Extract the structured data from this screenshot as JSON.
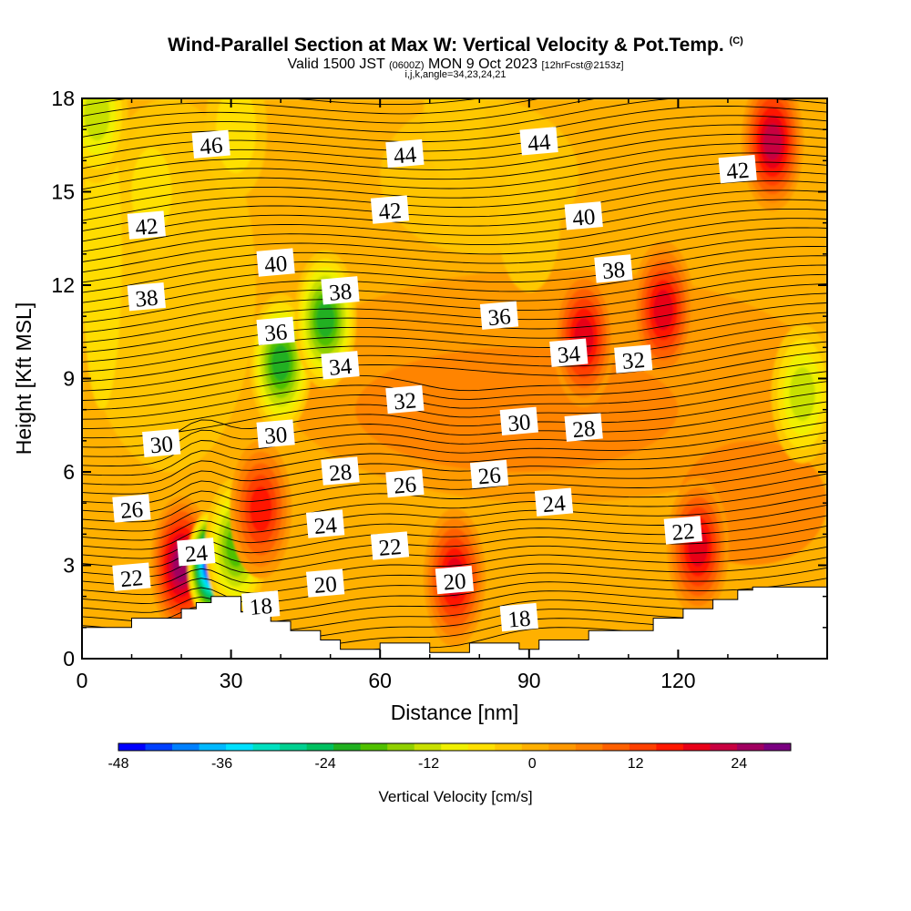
{
  "title": {
    "main": "Wind-Parallel Section at Max W: Vertical Velocity & Pot.Temp.",
    "copyright": "(C)",
    "valid_prefix": "Valid 1500 JST",
    "valid_zulu": "(0600Z)",
    "valid_date": "MON 9 Oct 2023",
    "forecast": "[12hrFcst@2153z]",
    "indices": "i,j,k,angle=34,23,24,21"
  },
  "chart_data": {
    "type": "heatmap",
    "xlabel": "Distance [nm]",
    "ylabel": "Height [Kft MSL]",
    "xlim": [
      0,
      150
    ],
    "ylim": [
      0,
      18
    ],
    "xticks": [
      0,
      30,
      60,
      90,
      120
    ],
    "yticks": [
      0,
      3,
      6,
      9,
      12,
      15,
      18
    ],
    "colorbar": {
      "title": "Vertical Velocity [cm/s]",
      "ticks": [
        -48,
        -36,
        -24,
        -12,
        0,
        12,
        24
      ],
      "range": [
        -48,
        30
      ],
      "levels": [
        -48,
        -42,
        -39,
        -36,
        -33,
        -30,
        -27,
        -24,
        -21,
        -18,
        -15,
        -12,
        -9,
        -6,
        -3,
        0,
        3,
        6,
        9,
        12,
        15,
        18,
        21,
        24,
        27,
        30
      ],
      "colors": [
        "#0000ff",
        "#0040ff",
        "#0080ff",
        "#00b8ff",
        "#00e0ff",
        "#00e0c0",
        "#00d090",
        "#00c060",
        "#20b020",
        "#50c000",
        "#90d000",
        "#c8e000",
        "#f0f000",
        "#ffe000",
        "#ffc800",
        "#ffb000",
        "#ff9800",
        "#ff8000",
        "#ff6000",
        "#ff4000",
        "#ff1800",
        "#e80018",
        "#c80040",
        "#a00060",
        "#7a0080"
      ]
    },
    "theta_labels": [
      {
        "value": "46",
        "x": 26,
        "y": 16.5
      },
      {
        "value": "44",
        "x": 65,
        "y": 16.2
      },
      {
        "value": "44",
        "x": 92,
        "y": 16.6
      },
      {
        "value": "42",
        "x": 132,
        "y": 15.7
      },
      {
        "value": "42",
        "x": 13,
        "y": 13.9
      },
      {
        "value": "42",
        "x": 62,
        "y": 14.4
      },
      {
        "value": "40",
        "x": 101,
        "y": 14.2
      },
      {
        "value": "40",
        "x": 39,
        "y": 12.7
      },
      {
        "value": "38",
        "x": 107,
        "y": 12.5
      },
      {
        "value": "38",
        "x": 13,
        "y": 11.6
      },
      {
        "value": "38",
        "x": 52,
        "y": 11.8
      },
      {
        "value": "36",
        "x": 84,
        "y": 11.0
      },
      {
        "value": "36",
        "x": 39,
        "y": 10.5
      },
      {
        "value": "34",
        "x": 98,
        "y": 9.8
      },
      {
        "value": "34",
        "x": 52,
        "y": 9.4
      },
      {
        "value": "32",
        "x": 111,
        "y": 9.6
      },
      {
        "value": "32",
        "x": 65,
        "y": 8.3
      },
      {
        "value": "30",
        "x": 88,
        "y": 7.6
      },
      {
        "value": "28",
        "x": 101,
        "y": 7.4
      },
      {
        "value": "30",
        "x": 16,
        "y": 6.9
      },
      {
        "value": "30",
        "x": 39,
        "y": 7.2
      },
      {
        "value": "28",
        "x": 52,
        "y": 6.0
      },
      {
        "value": "26",
        "x": 65,
        "y": 5.6
      },
      {
        "value": "26",
        "x": 82,
        "y": 5.9
      },
      {
        "value": "26",
        "x": 10,
        "y": 4.8
      },
      {
        "value": "24",
        "x": 95,
        "y": 5.0
      },
      {
        "value": "24",
        "x": 49,
        "y": 4.3
      },
      {
        "value": "22",
        "x": 121,
        "y": 4.1
      },
      {
        "value": "22",
        "x": 62,
        "y": 3.6
      },
      {
        "value": "24",
        "x": 23,
        "y": 3.4
      },
      {
        "value": "22",
        "x": 10,
        "y": 2.6
      },
      {
        "value": "20",
        "x": 75,
        "y": 2.5
      },
      {
        "value": "20",
        "x": 49,
        "y": 2.4
      },
      {
        "value": "18",
        "x": 36,
        "y": 1.7
      },
      {
        "value": "18",
        "x": 88,
        "y": 1.3
      }
    ],
    "vv_features": [
      {
        "x": 20,
        "y": 3.0,
        "value": 26
      },
      {
        "x": 26,
        "y": 3.0,
        "value": -45
      },
      {
        "x": 31,
        "y": 3.6,
        "value": -20
      },
      {
        "x": 36,
        "y": 4.8,
        "value": 15
      },
      {
        "x": 40,
        "y": 9.5,
        "value": -22
      },
      {
        "x": 49,
        "y": 10.9,
        "value": -22
      },
      {
        "x": 75,
        "y": 2.6,
        "value": 19
      },
      {
        "x": 101,
        "y": 10.3,
        "value": 19
      },
      {
        "x": 117,
        "y": 11.2,
        "value": 18
      },
      {
        "x": 124,
        "y": 3.6,
        "value": 20
      },
      {
        "x": 139,
        "y": 16.6,
        "value": 22
      },
      {
        "x": 145,
        "y": 8.5,
        "value": -13
      },
      {
        "x": 3,
        "y": 17.5,
        "value": -12
      },
      {
        "x": 14,
        "y": 15.0,
        "value": -6
      },
      {
        "x": 31,
        "y": 17.0,
        "value": -6
      },
      {
        "x": 90,
        "y": 14.0,
        "value": -3
      },
      {
        "x": 75,
        "y": 17.5,
        "value": -5
      }
    ],
    "terrain": [
      [
        0,
        1.0
      ],
      [
        10,
        1.0
      ],
      [
        10,
        1.3
      ],
      [
        20,
        1.3
      ],
      [
        20,
        1.6
      ],
      [
        23,
        1.6
      ],
      [
        23,
        1.8
      ],
      [
        26,
        1.8
      ],
      [
        26,
        2.0
      ],
      [
        32,
        2.0
      ],
      [
        32,
        1.5
      ],
      [
        38,
        1.5
      ],
      [
        38,
        1.2
      ],
      [
        42,
        1.2
      ],
      [
        42,
        0.9
      ],
      [
        48,
        0.9
      ],
      [
        48,
        0.6
      ],
      [
        52,
        0.6
      ],
      [
        52,
        0.3
      ],
      [
        60,
        0.3
      ],
      [
        60,
        0.5
      ],
      [
        70,
        0.5
      ],
      [
        70,
        0.2
      ],
      [
        78,
        0.2
      ],
      [
        78,
        0.5
      ],
      [
        88,
        0.5
      ],
      [
        88,
        0.3
      ],
      [
        92,
        0.3
      ],
      [
        92,
        0.6
      ],
      [
        102,
        0.6
      ],
      [
        102,
        0.9
      ],
      [
        115,
        0.9
      ],
      [
        115,
        1.3
      ],
      [
        121,
        1.3
      ],
      [
        121,
        1.6
      ],
      [
        127,
        1.6
      ],
      [
        127,
        1.9
      ],
      [
        132,
        1.9
      ],
      [
        132,
        2.2
      ],
      [
        135,
        2.2
      ],
      [
        135,
        2.3
      ],
      [
        150,
        2.3
      ],
      [
        150,
        2.0
      ]
    ]
  }
}
